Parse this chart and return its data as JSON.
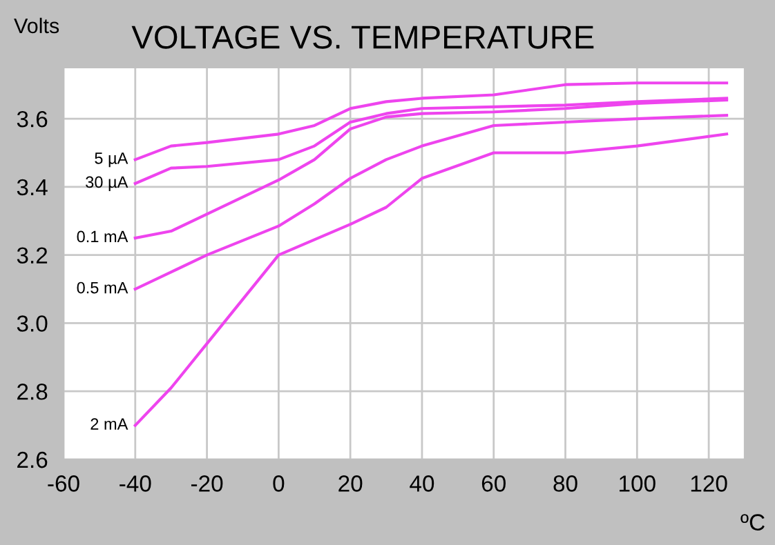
{
  "chart_data": {
    "type": "line",
    "title": "VOLTAGE VS. TEMPERATURE",
    "ylabel": "Volts",
    "xlabel": "ºC",
    "x": [
      -40,
      -30,
      -20,
      0,
      10,
      20,
      30,
      40,
      60,
      80,
      100,
      125
    ],
    "series": [
      {
        "name": "5 µA",
        "color": "#ee44ee",
        "values": [
          3.48,
          3.52,
          3.53,
          3.555,
          3.58,
          3.63,
          3.65,
          3.66,
          3.67,
          3.7,
          3.705,
          3.705
        ]
      },
      {
        "name": "30 µA",
        "color": "#ee44ee",
        "values": [
          3.41,
          3.455,
          3.46,
          3.48,
          3.52,
          3.59,
          3.615,
          3.63,
          3.635,
          3.64,
          3.65,
          3.66
        ]
      },
      {
        "name": "0.1 mA",
        "color": "#ee44ee",
        "values": [
          3.25,
          3.27,
          3.32,
          3.42,
          3.48,
          3.57,
          3.605,
          3.615,
          3.62,
          3.63,
          3.645,
          3.655
        ]
      },
      {
        "name": "0.5 mA",
        "color": "#ee44ee",
        "values": [
          3.1,
          3.15,
          3.2,
          3.285,
          3.35,
          3.425,
          3.48,
          3.52,
          3.58,
          3.59,
          3.6,
          3.61
        ]
      },
      {
        "name": "2 mA",
        "color": "#ee44ee",
        "values": [
          2.7,
          2.81,
          2.94,
          3.2,
          3.245,
          3.29,
          3.34,
          3.425,
          3.5,
          3.5,
          3.52,
          3.555
        ]
      }
    ],
    "xlim": [
      -60,
      130
    ],
    "xticks": [
      -60,
      -40,
      -20,
      0,
      20,
      40,
      60,
      80,
      100,
      120
    ],
    "ylim": [
      2.6,
      3.75
    ],
    "yticks": [
      {
        "value": 2.6,
        "label": "2.6"
      },
      {
        "value": 2.8,
        "label": "2.8"
      },
      {
        "value": 3.0,
        "label": "3.0"
      },
      {
        "value": 3.2,
        "label": "3.2"
      },
      {
        "value": 3.4,
        "label": "3.4"
      },
      {
        "value": 3.6,
        "label": "3.6"
      }
    ],
    "grid": true,
    "legend": false,
    "marker": "none",
    "line_style": "solid"
  }
}
